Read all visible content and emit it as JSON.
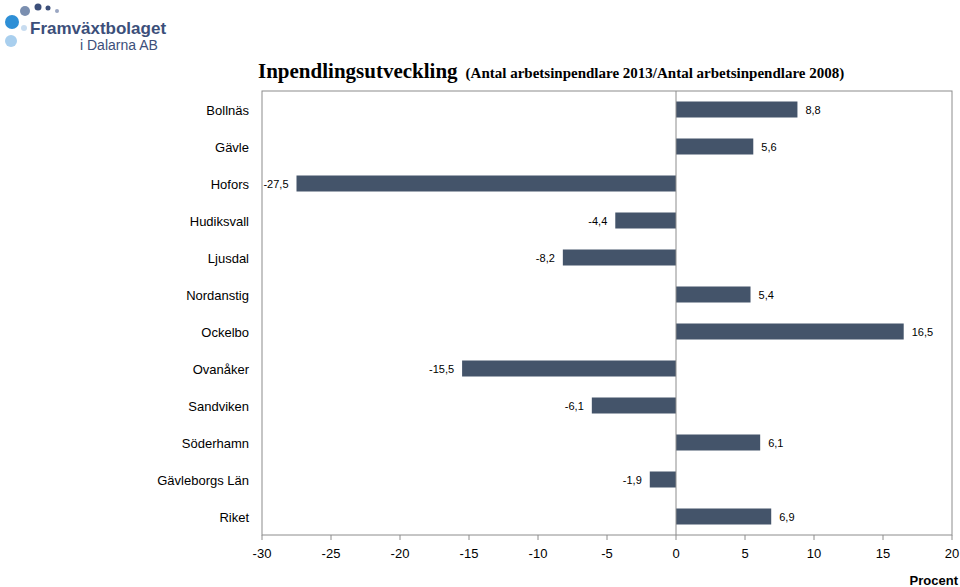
{
  "chart_data": {
    "type": "bar",
    "orientation": "horizontal",
    "title": "Inpendlingsutveckling",
    "subtitle": "(Antal arbetsinpendlare 2013/Antal arbetsinpendlare 2008)",
    "x_label": "Procent",
    "categories": [
      "Bollnäs",
      "Gävle",
      "Hofors",
      "Hudiksvall",
      "Ljusdal",
      "Nordanstig",
      "Ockelbo",
      "Ovanåker",
      "Sandviken",
      "Söderhamn",
      "Gävleborgs Län",
      "Riket"
    ],
    "values": [
      8.8,
      5.6,
      -27.5,
      -4.4,
      -8.2,
      5.4,
      16.5,
      -15.5,
      -6.1,
      6.1,
      -1.9,
      6.9
    ],
    "value_labels": [
      "8,8",
      "5,6",
      "-27,5",
      "-4,4",
      "-8,2",
      "5,4",
      "16,5",
      "-15,5",
      "-6,1",
      "6,1",
      "-1,9",
      "6,9"
    ],
    "color": "#44546a",
    "xlim": [
      -30,
      20
    ],
    "xticks": [
      -30,
      -25,
      -20,
      -15,
      -10,
      -5,
      0,
      5,
      10,
      15,
      20
    ],
    "grid": false,
    "data_labels": true
  },
  "logo": {
    "name": "Framväxtbolaget",
    "subname": "i Dalarna AB"
  }
}
